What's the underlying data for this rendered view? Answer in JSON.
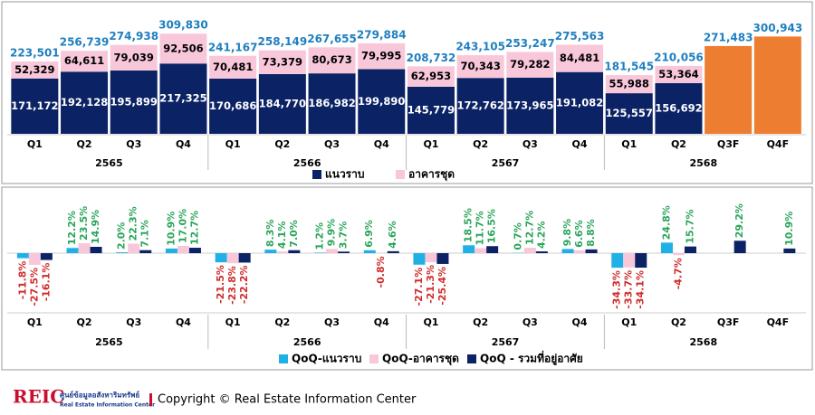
{
  "chart_data": [
    {
      "type": "bar",
      "stacked": true,
      "categories": [
        "Q1",
        "Q2",
        "Q3",
        "Q4",
        "Q1",
        "Q2",
        "Q3",
        "Q4",
        "Q1",
        "Q2",
        "Q3",
        "Q4",
        "Q1",
        "Q2",
        "Q3F",
        "Q4F"
      ],
      "groups": [
        "2565",
        "2566",
        "2567",
        "2568"
      ],
      "ylim": [
        0,
        330000
      ],
      "series": [
        {
          "name": "แนวราบ",
          "color": "#0b2265",
          "values": [
            171172,
            192128,
            195899,
            217325,
            170686,
            184770,
            186982,
            199890,
            145779,
            172762,
            173965,
            191082,
            125557,
            156692,
            null,
            null
          ],
          "value_labels": [
            "171,172",
            "192,128",
            "195,899",
            "217,325",
            "170,686",
            "184,770",
            "186,982",
            "199,890",
            "145,779",
            "172,762",
            "173,965",
            "191,082",
            "125,557",
            "156,692",
            null,
            null
          ]
        },
        {
          "name": "อาคารชุด",
          "color": "#f8c8da",
          "values": [
            52329,
            64611,
            79039,
            92506,
            70481,
            73379,
            80673,
            79995,
            62953,
            70343,
            79282,
            84481,
            55988,
            53364,
            null,
            null
          ],
          "value_labels": [
            "52,329",
            "64,611",
            "79,039",
            "92,506",
            "70,481",
            "73,379",
            "80,673",
            "79,995",
            "62,953",
            "70,343",
            "79,282",
            "84,481",
            "55,988",
            "53,364",
            null,
            null
          ]
        }
      ],
      "totals": {
        "color": "#1f7fc0",
        "values": [
          223501,
          256739,
          274938,
          309830,
          241167,
          258149,
          267655,
          279884,
          208732,
          243105,
          253247,
          275563,
          181545,
          210056,
          271483,
          300943
        ],
        "value_labels": [
          "223,501",
          "256,739",
          "274,938",
          "309,830",
          "241,167",
          "258,149",
          "267,655",
          "279,884",
          "208,732",
          "243,105",
          "253,247",
          "275,563",
          "181,545",
          "210,056",
          "271,483",
          "300,943"
        ]
      },
      "forecast_color": "#ed7d31"
    },
    {
      "type": "bar",
      "stacked": false,
      "categories": [
        "Q1",
        "Q2",
        "Q3",
        "Q4",
        "Q1",
        "Q2",
        "Q3",
        "Q4",
        "Q1",
        "Q2",
        "Q3",
        "Q4",
        "Q1",
        "Q2",
        "Q3F",
        "Q4F"
      ],
      "groups": [
        "2565",
        "2566",
        "2567",
        "2568"
      ],
      "ylim": [
        -100,
        100
      ],
      "positive_color": "#2aa55a",
      "negative_color": "#cf2b2b",
      "series": [
        {
          "name": "QoQ-แนวราบ",
          "color": "#1fb1e6",
          "values": [
            -11.8,
            12.2,
            2.0,
            10.9,
            -21.5,
            8.3,
            1.2,
            6.9,
            -27.1,
            18.5,
            0.7,
            9.8,
            -34.3,
            24.8,
            null,
            null
          ],
          "value_labels": [
            "-11.8%",
            "12.2%",
            "2.0%",
            "10.9%",
            "-21.5%",
            "8.3%",
            "1.2%",
            "6.9%",
            "-27.1%",
            "18.5%",
            "0.7%",
            "9.8%",
            "-34.3%",
            "24.8%",
            null,
            null
          ]
        },
        {
          "name": "QoQ-อาคารชุด",
          "color": "#f8c8da",
          "values": [
            -27.5,
            23.5,
            22.3,
            17.0,
            -23.8,
            4.1,
            9.9,
            -0.8,
            -21.3,
            11.7,
            12.7,
            6.6,
            -33.7,
            -4.7,
            null,
            null
          ],
          "value_labels": [
            "-27.5%",
            "23.5%",
            "22.3%",
            "17.0%",
            "-23.8%",
            "4.1%",
            "9.9%",
            "-0.8%",
            "-21.3%",
            "11.7%",
            "12.7%",
            "6.6%",
            "-33.7%",
            "-4.7%",
            null,
            null
          ]
        },
        {
          "name": "QoQ - รวมที่อยู่อาศัย",
          "color": "#0b2265",
          "values": [
            -16.1,
            14.9,
            7.1,
            12.7,
            -22.2,
            7.0,
            3.7,
            4.6,
            -25.4,
            16.5,
            4.2,
            8.8,
            -34.1,
            15.7,
            29.2,
            10.9
          ],
          "value_labels": [
            "-16.1%",
            "14.9%",
            "7.1%",
            "12.7%",
            "-22.2%",
            "7.0%",
            "3.7%",
            "4.6%",
            "-25.4%",
            "16.5%",
            "4.2%",
            "8.8%",
            "-34.1%",
            "15.7%",
            "29.2%",
            "10.9%"
          ]
        }
      ]
    }
  ],
  "footer": {
    "logo": "REIC",
    "org_th": "ศูนย์ข้อมูลอสังหาริมทรัพย์",
    "org_en": "Real Estate Information Center",
    "copyright": "Copyright © Real Estate Information Center"
  }
}
